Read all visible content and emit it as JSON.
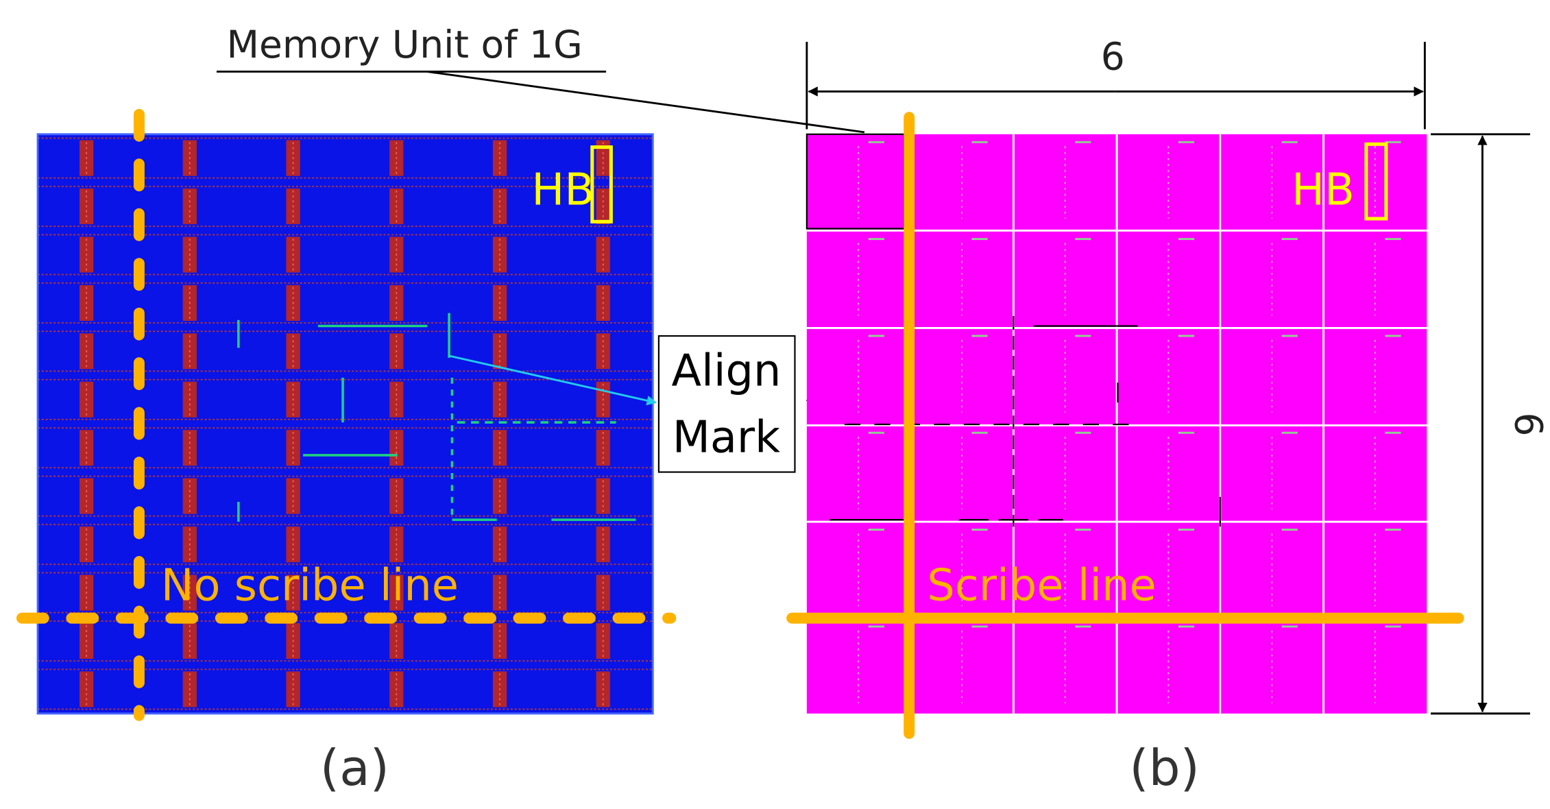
{
  "labels": {
    "memory_unit": "Memory Unit of 1G",
    "dim_top": "6",
    "dim_right": "6",
    "hb_a": "HB",
    "hb_b": "HB",
    "align": "Align",
    "mark": "Mark",
    "no_scribe": "No scribe line",
    "scribe": "Scribe line",
    "panel_a": "(a)",
    "panel_b": "(b)"
  }
}
